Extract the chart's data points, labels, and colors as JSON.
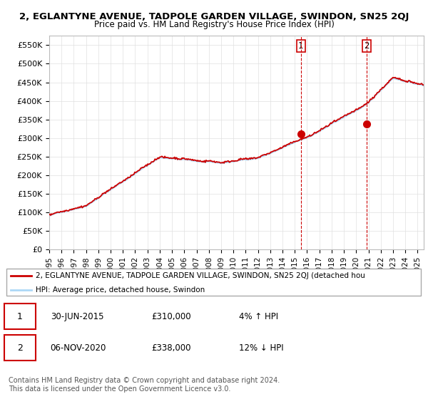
{
  "title": "2, EGLANTYNE AVENUE, TADPOLE GARDEN VILLAGE, SWINDON, SN25 2QJ",
  "subtitle": "Price paid vs. HM Land Registry's House Price Index (HPI)",
  "ylim": [
    0,
    575000
  ],
  "xlim_start": 1995.0,
  "xlim_end": 2025.5,
  "hpi_color": "#add8f7",
  "property_color": "#cc0000",
  "purchase1_date": 2015.5,
  "purchase1_price": 310000,
  "purchase2_date": 2020.83,
  "purchase2_price": 338000,
  "legend_property": "2, EGLANTYNE AVENUE, TADPOLE GARDEN VILLAGE, SWINDON, SN25 2QJ (detached hou",
  "legend_hpi": "HPI: Average price, detached house, Swindon",
  "annotation1_date": "30-JUN-2015",
  "annotation1_price": "£310,000",
  "annotation1_hpi": "4% ↑ HPI",
  "annotation2_date": "06-NOV-2020",
  "annotation2_price": "£338,000",
  "annotation2_hpi": "12% ↓ HPI",
  "footer": "Contains HM Land Registry data © Crown copyright and database right 2024.\nThis data is licensed under the Open Government Licence v3.0.",
  "background_color": "#ffffff",
  "grid_color": "#e0e0e0"
}
